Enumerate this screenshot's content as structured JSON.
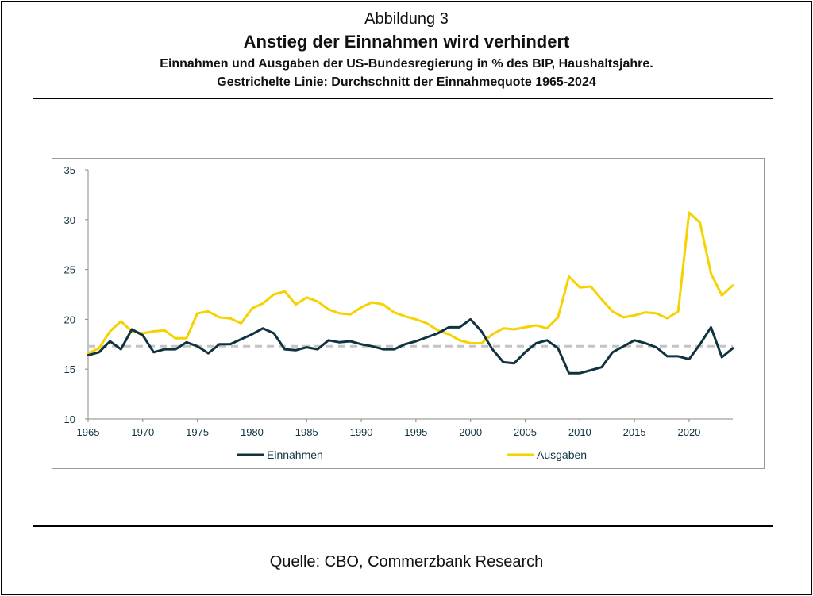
{
  "header": {
    "figure_label": "Abbildung 3",
    "title": "Anstieg der Einnahmen wird verhindert",
    "subtitle_line1": "Einnahmen und Ausgaben der US-Bundesregierung in % des BIP, Haushaltsjahre.",
    "subtitle_line2": "Gestrichelte Linie: Durchschnitt der Einnahmequote 1965-2024"
  },
  "footer": {
    "source": "Quelle: CBO, Commerzbank Research"
  },
  "chart_data": {
    "type": "line",
    "x": [
      1965,
      1966,
      1967,
      1968,
      1969,
      1970,
      1971,
      1972,
      1973,
      1974,
      1975,
      1976,
      1977,
      1978,
      1979,
      1980,
      1981,
      1982,
      1983,
      1984,
      1985,
      1986,
      1987,
      1988,
      1989,
      1990,
      1991,
      1992,
      1993,
      1994,
      1995,
      1996,
      1997,
      1998,
      1999,
      2000,
      2001,
      2002,
      2003,
      2004,
      2005,
      2006,
      2007,
      2008,
      2009,
      2010,
      2011,
      2012,
      2013,
      2014,
      2015,
      2016,
      2017,
      2018,
      2019,
      2020,
      2021,
      2022,
      2023,
      2024
    ],
    "series": [
      {
        "name": "Einnahmen",
        "color": "#0f3440",
        "values": [
          16.4,
          16.7,
          17.8,
          17.0,
          19.0,
          18.4,
          16.7,
          17.0,
          17.0,
          17.7,
          17.3,
          16.6,
          17.5,
          17.5,
          18.0,
          18.5,
          19.1,
          18.6,
          17.0,
          16.9,
          17.2,
          17.0,
          17.9,
          17.7,
          17.8,
          17.5,
          17.3,
          17.0,
          17.0,
          17.5,
          17.8,
          18.2,
          18.6,
          19.2,
          19.2,
          20.0,
          18.8,
          17.0,
          15.7,
          15.6,
          16.7,
          17.6,
          17.9,
          17.1,
          14.6,
          14.6,
          14.9,
          15.2,
          16.7,
          17.3,
          17.9,
          17.6,
          17.2,
          16.3,
          16.3,
          16.0,
          17.5,
          19.2,
          16.2,
          17.1
        ]
      },
      {
        "name": "Ausgaben",
        "color": "#f5d200",
        "values": [
          16.6,
          17.1,
          18.8,
          19.8,
          18.8,
          18.6,
          18.8,
          18.9,
          18.1,
          18.1,
          20.6,
          20.8,
          20.2,
          20.1,
          19.6,
          21.1,
          21.6,
          22.5,
          22.8,
          21.5,
          22.2,
          21.8,
          21.0,
          20.6,
          20.5,
          21.2,
          21.7,
          21.5,
          20.7,
          20.3,
          20.0,
          19.6,
          18.9,
          18.5,
          17.9,
          17.6,
          17.6,
          18.5,
          19.1,
          19.0,
          19.2,
          19.4,
          19.1,
          20.2,
          24.3,
          23.2,
          23.3,
          22.0,
          20.8,
          20.2,
          20.4,
          20.7,
          20.6,
          20.1,
          20.8,
          30.7,
          29.7,
          24.6,
          22.4,
          23.4
        ]
      }
    ],
    "average_line": {
      "value": 17.3,
      "color": "#c4c4c4"
    },
    "ylim": [
      10,
      35
    ],
    "yticks": [
      10,
      15,
      20,
      25,
      30,
      35
    ],
    "xlim": [
      1965,
      2024
    ],
    "xticks": [
      1965,
      1970,
      1975,
      1980,
      1985,
      1990,
      1995,
      2000,
      2005,
      2010,
      2015,
      2020
    ],
    "xlabel": "",
    "ylabel": "",
    "grid": false,
    "legend_position": "bottom",
    "axis_text_color": "#0f3440"
  }
}
